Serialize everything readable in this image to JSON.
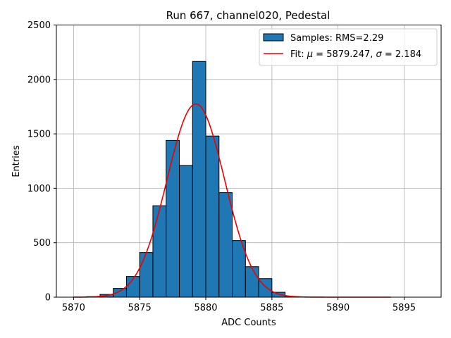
{
  "chart_data": {
    "type": "bar",
    "title": "Run 667, channel020, Pedestal",
    "xlabel": "ADC Counts",
    "ylabel": "Entries",
    "xlim": [
      5868.7,
      5897.8
    ],
    "ylim": [
      0,
      2500
    ],
    "grid": true,
    "legend_position": "top-right",
    "x_ticks": [
      5870,
      5875,
      5880,
      5885,
      5890,
      5895
    ],
    "y_ticks": [
      0,
      500,
      1000,
      1500,
      2000,
      2500
    ],
    "bin_width": 1,
    "bins": [
      {
        "left": 5871,
        "count": 5
      },
      {
        "left": 5872,
        "count": 25
      },
      {
        "left": 5873,
        "count": 80
      },
      {
        "left": 5874,
        "count": 190
      },
      {
        "left": 5875,
        "count": 410
      },
      {
        "left": 5876,
        "count": 840
      },
      {
        "left": 5877,
        "count": 1440
      },
      {
        "left": 5878,
        "count": 1210
      },
      {
        "left": 5879,
        "count": 2165
      },
      {
        "left": 5880,
        "count": 1480
      },
      {
        "left": 5881,
        "count": 960
      },
      {
        "left": 5882,
        "count": 520
      },
      {
        "left": 5883,
        "count": 280
      },
      {
        "left": 5884,
        "count": 170
      },
      {
        "left": 5885,
        "count": 45
      },
      {
        "left": 5886,
        "count": 5
      }
    ],
    "fit": {
      "mu": 5879.247,
      "sigma": 2.184,
      "amplitude": 1775,
      "x_range": [
        5870,
        5894
      ]
    },
    "series": [
      {
        "name": "Samples: RMS=2.29",
        "kind": "histogram",
        "color": "#1f77b4"
      },
      {
        "name_prefix": "Fit: ",
        "name_mu_sym": "μ",
        "name_mu_val": " = 5879.247, ",
        "name_sigma_sym": "σ",
        "name_sigma_val": " = 2.184",
        "kind": "line",
        "color": "#ee0000"
      }
    ]
  }
}
